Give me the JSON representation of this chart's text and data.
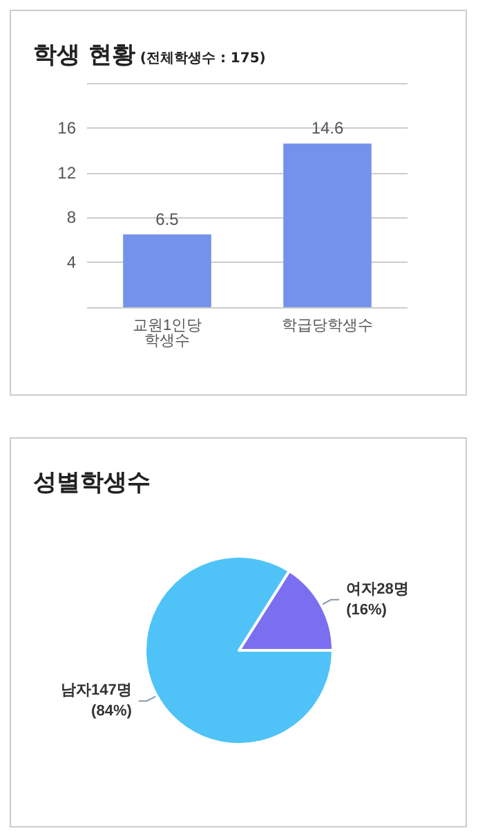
{
  "chart_data": [
    {
      "type": "bar",
      "title": "학생 현황",
      "subtitle": "(전체학생수 : 175)",
      "categories": [
        "교원1인당\n학생수",
        "학급당학생수"
      ],
      "values": [
        6.5,
        14.6
      ],
      "color": "#7491ec",
      "ylim": [
        0,
        20
      ],
      "yticks": [
        {
          "value": 0,
          "label": null
        },
        4,
        8,
        12,
        16,
        {
          "value": 20,
          "label": null
        }
      ],
      "grid": "y",
      "data_labels": true,
      "legend": false
    },
    {
      "type": "pie",
      "title": "성별학생수",
      "categories": [
        "여자",
        "남자"
      ],
      "values": [
        28,
        147
      ],
      "colors": [
        "#7a6ff0",
        "#4fc3f7"
      ],
      "value_labels": [
        "28명\n(16%)",
        "147명\n(84%)"
      ],
      "legend": false
    }
  ]
}
